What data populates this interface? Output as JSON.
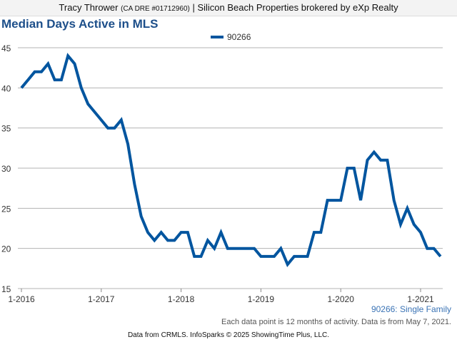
{
  "header": {
    "agent": "Tracy Thrower",
    "license": "(CA DRE #01712960)",
    "brokerage": "| Silicon Beach Properties brokered by eXp Realty"
  },
  "subtitle_label": "90266: Single Family",
  "note": "Each data point is 12 months of activity. Data is from May 7, 2021.",
  "footer": "Data from CRMLS. InfoSparks © 2025 ShowingTime Plus, LLC.",
  "colors": {
    "line": "#00559f",
    "title": "#1d4f8a"
  },
  "chart_data": {
    "type": "line",
    "title": "Median Days Active in MLS",
    "xlabel": "",
    "ylabel": "",
    "ylim": [
      15,
      45
    ],
    "yticks": [
      15,
      20,
      25,
      30,
      35,
      40,
      45
    ],
    "xtick_labels": [
      "1-2016",
      "1-2017",
      "1-2018",
      "1-2019",
      "1-2020",
      "1-2021"
    ],
    "grid": true,
    "legend": "top-center",
    "start": "1-2016",
    "series": [
      {
        "name": "90266",
        "values": [
          40,
          41,
          42,
          42,
          43,
          41,
          41,
          44,
          43,
          40,
          38,
          37,
          36,
          35,
          35,
          36,
          33,
          28,
          24,
          22,
          21,
          22,
          21,
          21,
          22,
          22,
          19,
          19,
          21,
          20,
          22,
          20,
          20,
          20,
          20,
          20,
          19,
          19,
          19,
          20,
          18,
          19,
          19,
          19,
          22,
          22,
          26,
          26,
          26,
          30,
          30,
          26,
          31,
          32,
          31,
          31,
          26,
          23,
          25,
          23,
          22,
          20,
          20,
          19
        ]
      }
    ]
  }
}
